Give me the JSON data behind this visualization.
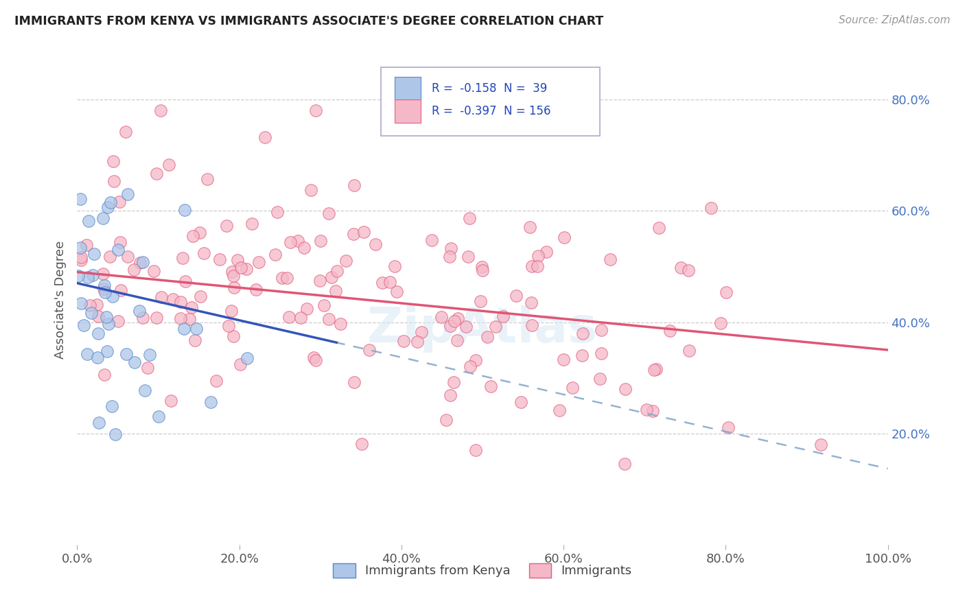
{
  "title": "IMMIGRANTS FROM KENYA VS IMMIGRANTS ASSOCIATE'S DEGREE CORRELATION CHART",
  "source": "Source: ZipAtlas.com",
  "ylabel": "Associate's Degree",
  "legend_label_1": "Immigrants from Kenya",
  "legend_label_2": "Immigrants",
  "R1": -0.158,
  "N1": 39,
  "R2": -0.397,
  "N2": 156,
  "color_blue_fill": "#aec6e8",
  "color_blue_edge": "#5588cc",
  "color_pink_fill": "#f5b8c8",
  "color_pink_edge": "#e06080",
  "color_blue_line": "#3355bb",
  "color_pink_line": "#e05575",
  "color_dashed": "#88aacc",
  "xlim": [
    0.0,
    1.0
  ],
  "ylim": [
    0.0,
    0.88
  ],
  "xticks": [
    0.0,
    0.2,
    0.4,
    0.6,
    0.8,
    1.0
  ],
  "yticks": [
    0.2,
    0.4,
    0.6,
    0.8
  ],
  "xtick_labels": [
    "0.0%",
    "20.0%",
    "40.0%",
    "60.0%",
    "80.0%",
    "100.0%"
  ],
  "ytick_labels_right": [
    "20.0%",
    "40.0%",
    "60.0%",
    "80.0%"
  ],
  "blue_trend_x0": 0.0,
  "blue_trend_y0": 0.47,
  "blue_trend_x1": 0.3,
  "blue_trend_y1": 0.37,
  "pink_trend_x0": 0.0,
  "pink_trend_y0": 0.49,
  "pink_trend_x1": 1.0,
  "pink_trend_y1": 0.35
}
